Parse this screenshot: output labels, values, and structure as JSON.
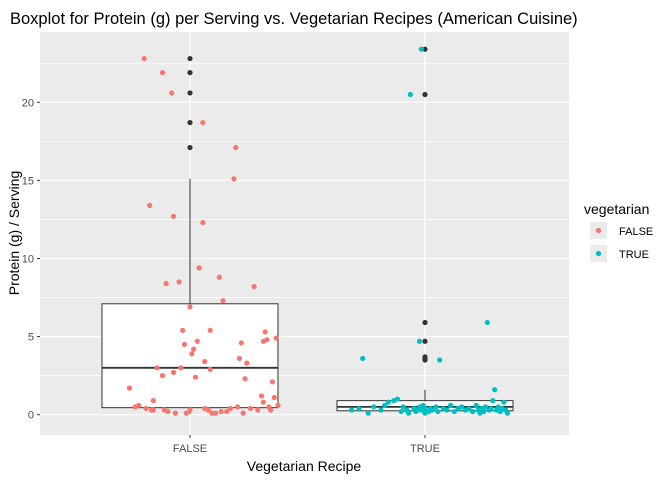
{
  "chart_data": {
    "type": "boxplot",
    "title": "Boxplot for Protein (g) per Serving vs. Vegetarian Recipes (American Cuisine)",
    "xlabel": "Vegetarian Recipe",
    "ylabel": "Protein (g) / Serving",
    "ylim": [
      -1.3,
      24.5
    ],
    "y_ticks": [
      0,
      5,
      10,
      15,
      20
    ],
    "grid": true,
    "legend": {
      "title": "vegetarian",
      "position": "right",
      "items": [
        {
          "label": "FALSE",
          "color": "#F8766D"
        },
        {
          "label": "TRUE",
          "color": "#00BFC4"
        }
      ]
    },
    "categories": [
      "FALSE",
      "TRUE"
    ],
    "boxes": [
      {
        "category": "FALSE",
        "whisker_low": 0.05,
        "q1": 0.45,
        "median": 3.0,
        "q3": 7.1,
        "whisker_high": 15.1,
        "outliers": [
          17.1,
          18.7,
          20.6,
          21.9,
          22.8
        ]
      },
      {
        "category": "TRUE",
        "whisker_low": 0.05,
        "q1": 0.25,
        "median": 0.5,
        "q3": 0.9,
        "whisker_high": 1.6,
        "outliers": [
          3.5,
          3.6,
          3.7,
          4.7,
          5.9,
          20.5,
          23.4
        ]
      }
    ],
    "points": [
      {
        "category": "FALSE",
        "color": "#F8766D",
        "data": [
          [
            -0.33,
            1.7
          ],
          [
            -0.3,
            0.5
          ],
          [
            -0.28,
            0.6
          ],
          [
            -0.25,
            22.8
          ],
          [
            -0.24,
            0.4
          ],
          [
            -0.22,
            13.4
          ],
          [
            -0.21,
            0.3
          ],
          [
            -0.2,
            0.3
          ],
          [
            -0.2,
            0.9
          ],
          [
            -0.18,
            3.0
          ],
          [
            -0.15,
            21.9
          ],
          [
            -0.15,
            2.5
          ],
          [
            -0.14,
            0.3
          ],
          [
            -0.13,
            8.4
          ],
          [
            -0.12,
            0.2
          ],
          [
            -0.1,
            20.6
          ],
          [
            -0.09,
            12.7
          ],
          [
            -0.09,
            2.7
          ],
          [
            -0.08,
            0.1
          ],
          [
            -0.06,
            8.5
          ],
          [
            -0.05,
            3.0
          ],
          [
            -0.04,
            5.4
          ],
          [
            -0.03,
            4.5
          ],
          [
            -0.02,
            0.1
          ],
          [
            0.0,
            0.3
          ],
          [
            0.0,
            6.9
          ],
          [
            0.01,
            3.9
          ],
          [
            0.02,
            4.2
          ],
          [
            0.03,
            2.4
          ],
          [
            0.04,
            4.7
          ],
          [
            0.05,
            9.4
          ],
          [
            0.07,
            18.7
          ],
          [
            0.07,
            12.3
          ],
          [
            0.08,
            0.4
          ],
          [
            0.08,
            3.4
          ],
          [
            0.1,
            0.3
          ],
          [
            0.11,
            2.9
          ],
          [
            0.11,
            5.4
          ],
          [
            0.12,
            0.1
          ],
          [
            0.14,
            0.1
          ],
          [
            0.16,
            8.8
          ],
          [
            0.17,
            0.2
          ],
          [
            0.18,
            7.3
          ],
          [
            0.2,
            0.2
          ],
          [
            0.22,
            0.4
          ],
          [
            0.24,
            15.1
          ],
          [
            0.25,
            17.1
          ],
          [
            0.26,
            0.5
          ],
          [
            0.27,
            3.6
          ],
          [
            0.28,
            4.6
          ],
          [
            0.29,
            0.1
          ],
          [
            0.3,
            2.3
          ],
          [
            0.31,
            3.3
          ],
          [
            0.33,
            0.4
          ],
          [
            0.35,
            8.2
          ],
          [
            0.37,
            0.3
          ],
          [
            0.39,
            1.2
          ],
          [
            0.4,
            0.8
          ],
          [
            0.4,
            4.7
          ],
          [
            0.41,
            5.3
          ],
          [
            0.42,
            4.8
          ],
          [
            0.43,
            0.5
          ],
          [
            0.44,
            0.3
          ],
          [
            0.45,
            2.1
          ],
          [
            0.46,
            1.1
          ],
          [
            0.47,
            4.9
          ],
          [
            0.48,
            0.6
          ]
        ]
      },
      {
        "category": "TRUE",
        "color": "#00BFC4",
        "data": [
          [
            -0.4,
            0.3
          ],
          [
            -0.36,
            0.4
          ],
          [
            -0.34,
            3.6
          ],
          [
            -0.31,
            0.1
          ],
          [
            -0.28,
            0.5
          ],
          [
            -0.24,
            0.3
          ],
          [
            -0.22,
            0.6
          ],
          [
            -0.2,
            0.8
          ],
          [
            -0.17,
            0.9
          ],
          [
            -0.15,
            1.0
          ],
          [
            -0.13,
            0.2
          ],
          [
            -0.12,
            0.5
          ],
          [
            -0.1,
            0.3
          ],
          [
            -0.09,
            0.1
          ],
          [
            -0.08,
            20.5
          ],
          [
            -0.06,
            0.4
          ],
          [
            -0.05,
            0.2
          ],
          [
            -0.04,
            0.3
          ],
          [
            -0.03,
            0.5
          ],
          [
            -0.03,
            4.7
          ],
          [
            -0.02,
            0.3
          ],
          [
            -0.01,
            0.6
          ],
          [
            0.0,
            0.4
          ],
          [
            0.0,
            0.1
          ],
          [
            -0.02,
            23.4
          ],
          [
            0.02,
            0.2
          ],
          [
            0.03,
            0.4
          ],
          [
            0.04,
            0.3
          ],
          [
            0.06,
            0.5
          ],
          [
            0.07,
            0.2
          ],
          [
            0.08,
            3.5
          ],
          [
            0.1,
            0.4
          ],
          [
            0.12,
            0.3
          ],
          [
            0.14,
            0.6
          ],
          [
            0.16,
            0.2
          ],
          [
            0.18,
            0.4
          ],
          [
            0.2,
            0.5
          ],
          [
            0.22,
            0.3
          ],
          [
            0.24,
            0.4
          ],
          [
            0.26,
            0.2
          ],
          [
            0.28,
            0.6
          ],
          [
            0.29,
            0.3
          ],
          [
            0.3,
            0.1
          ],
          [
            0.31,
            0.4
          ],
          [
            0.32,
            0.2
          ],
          [
            0.33,
            0.5
          ],
          [
            0.34,
            5.9
          ],
          [
            0.35,
            0.3
          ],
          [
            0.36,
            0.4
          ],
          [
            0.37,
            0.9
          ],
          [
            0.38,
            1.6
          ],
          [
            0.39,
            0.3
          ],
          [
            0.4,
            0.5
          ],
          [
            0.41,
            0.2
          ],
          [
            0.42,
            0.4
          ],
          [
            0.43,
            0.8
          ],
          [
            0.44,
            0.3
          ],
          [
            0.45,
            0.1
          ]
        ]
      }
    ]
  }
}
